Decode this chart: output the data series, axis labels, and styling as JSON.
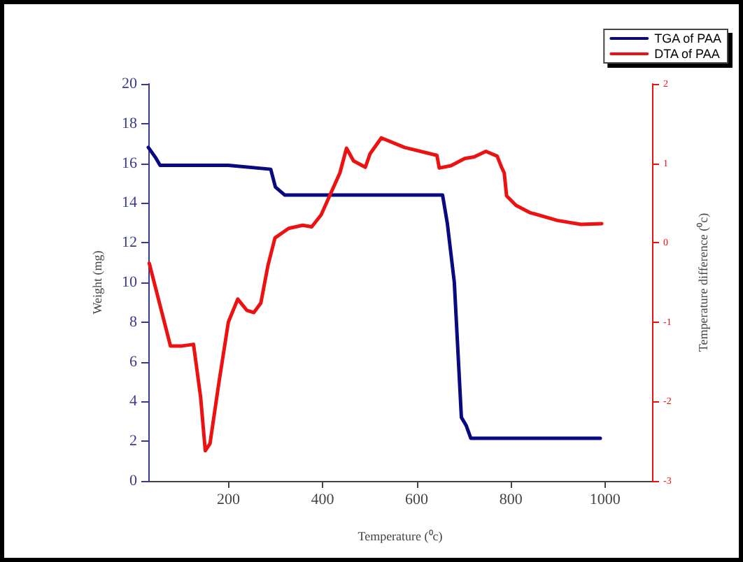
{
  "chart_data": {
    "type": "line",
    "xlabel": "Temperature (⁰c)",
    "ylabel": "Weight (mg)",
    "y2label": "Temperature difference (⁰c)",
    "xlim": [
      30,
      1100
    ],
    "xticks": [
      200,
      400,
      600,
      800,
      1000
    ],
    "ylim": [
      0,
      20
    ],
    "yticks": [
      0,
      2,
      4,
      6,
      8,
      10,
      12,
      14,
      16,
      18,
      20
    ],
    "y2lim": [
      -3,
      2
    ],
    "y2ticks": [
      -3,
      -2,
      -1,
      0,
      1,
      2
    ],
    "legend": "top right",
    "grid": false,
    "marker": "none",
    "series": [
      {
        "name": "TGA of PAA",
        "color": "#0a0a80",
        "line_style": "solid",
        "x": [
          30,
          45,
          55,
          200,
          290,
          300,
          320,
          655,
          665,
          680,
          695,
          705,
          715,
          990
        ],
        "values": [
          16.8,
          16.3,
          15.9,
          15.9,
          15.7,
          14.8,
          14.4,
          14.4,
          13,
          10,
          3.2,
          2.8,
          2.15,
          2.15
        ]
      },
      {
        "name": "DTA of PAA",
        "color": "#ee1111",
        "line_style": "solid",
        "axis": "y2",
        "x": [
          32,
          77,
          102,
          126,
          141,
          151,
          161,
          180,
          200,
          220,
          239,
          254,
          269,
          284,
          299,
          328,
          358,
          377,
          397,
          437,
          451,
          466,
          491,
          501,
          525,
          574,
          643,
          648,
          673,
          702,
          722,
          747,
          771,
          781,
          786,
          791,
          811,
          840,
          899,
          949,
          993
        ],
        "values": [
          -0.26,
          -1.3,
          -1.3,
          -1.28,
          -1.94,
          -2.62,
          -2.53,
          -1.76,
          -1.0,
          -0.71,
          -0.85,
          -0.88,
          -0.76,
          -0.29,
          0.06,
          0.18,
          0.22,
          0.2,
          0.35,
          0.88,
          1.19,
          1.03,
          0.95,
          1.12,
          1.32,
          1.2,
          1.1,
          0.94,
          0.97,
          1.06,
          1.08,
          1.15,
          1.09,
          0.94,
          0.88,
          0.59,
          0.47,
          0.38,
          0.28,
          0.23,
          0.24
        ]
      }
    ]
  }
}
